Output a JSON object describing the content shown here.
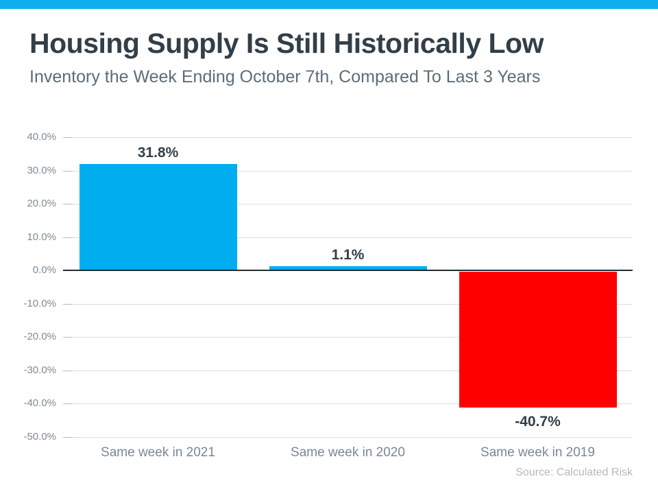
{
  "page": {
    "accent_bar_color": "#0fadec"
  },
  "header": {
    "title": "Housing Supply Is Still Historically Low",
    "subtitle": "Inventory the Week Ending October 7th, Compared To Last 3 Years"
  },
  "chart_data": {
    "type": "bar",
    "title": "Housing Supply Is Still Historically Low",
    "subtitle": "Inventory the Week Ending October 7th, Compared To Last 3 Years",
    "categories": [
      "Same week in 2021",
      "Same week in 2020",
      "Same week in 2019"
    ],
    "values": [
      31.8,
      1.1,
      -40.7
    ],
    "value_labels": [
      "31.8%",
      "1.1%",
      "-40.7%"
    ],
    "bar_colors": [
      "#00aeef",
      "#00aeef",
      "#fe0000"
    ],
    "xlabel": "",
    "ylabel": "",
    "ylim": [
      -50,
      40
    ],
    "ytick_step": 10,
    "ytick_labels": [
      "40.0%",
      "30.0%",
      "20.0%",
      "10.0%",
      "0.0%",
      "-10.0%",
      "-20.0%",
      "-30.0%",
      "-40.0%",
      "-50.0%"
    ],
    "grid": true,
    "legend": false
  },
  "footer": {
    "source": "Source: Calculated Risk"
  }
}
